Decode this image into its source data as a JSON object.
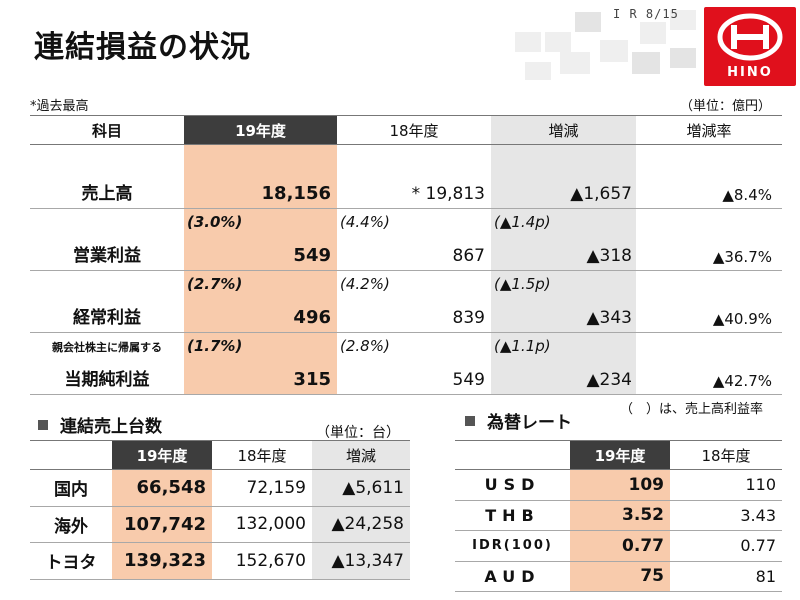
{
  "header": {
    "page_label": "I R   8/15",
    "title": "連結損益の状況",
    "logo_text": "HINO"
  },
  "main_table": {
    "note_left": "*過去最高",
    "unit": "（単位：億円）",
    "columns": [
      "科目",
      "19年度",
      "18年度",
      "増減",
      "増減率"
    ],
    "rows": [
      {
        "label": "売上高",
        "sublabel": "",
        "r19": "",
        "v19": "18,156",
        "r18": "",
        "v18": "* 19,813",
        "rdiff": "",
        "diff": "▲1,657",
        "rate": "▲8.4%"
      },
      {
        "label": "営業利益",
        "sublabel": "",
        "r19": "(3.0%)",
        "v19": "549",
        "r18": "(4.4%)",
        "v18": "867",
        "rdiff": "(▲1.4p)",
        "diff": "▲318",
        "rate": "▲36.7%"
      },
      {
        "label": "経常利益",
        "sublabel": "",
        "r19": "(2.7%)",
        "v19": "496",
        "r18": "(4.2%)",
        "v18": "839",
        "rdiff": "(▲1.5p)",
        "diff": "▲343",
        "rate": "▲40.9%"
      },
      {
        "label": "当期純利益",
        "sublabel": "親会社株主に帰属する",
        "r19": "(1.7%)",
        "v19": "315",
        "r18": "(2.8%)",
        "v18": "549",
        "rdiff": "(▲1.1p)",
        "diff": "▲234",
        "rate": "▲42.7%"
      }
    ]
  },
  "margin_note": "（　）は、売上高利益率",
  "units_section": {
    "heading": "連結売上台数",
    "unit": "（単位：台）",
    "columns": [
      "",
      "19年度",
      "18年度",
      "増減"
    ],
    "rows": [
      {
        "label": "国内",
        "v19": "66,548",
        "v18": "72,159",
        "diff": "▲5,611"
      },
      {
        "label": "海外",
        "v19": "107,742",
        "v18": "132,000",
        "diff": "▲24,258"
      },
      {
        "label": "トヨタ",
        "v19": "139,323",
        "v18": "152,670",
        "diff": "▲13,347"
      }
    ]
  },
  "fx_section": {
    "heading": "為替レート",
    "columns": [
      "",
      "19年度",
      "18年度"
    ],
    "rows": [
      {
        "label": "USD",
        "v19": "109",
        "v18": "110"
      },
      {
        "label": "THB",
        "v19": "3.52",
        "v18": "3.43"
      },
      {
        "label": "IDR(100)",
        "v19": "0.77",
        "v18": "0.77"
      },
      {
        "label": "AUD",
        "v19": "75",
        "v18": "81"
      }
    ]
  },
  "colors": {
    "accent_fill": "#f8cbac",
    "header_dark": "#3d3d3d",
    "diff_fill": "#e6e6e6",
    "brand_red": "#e0101c"
  }
}
